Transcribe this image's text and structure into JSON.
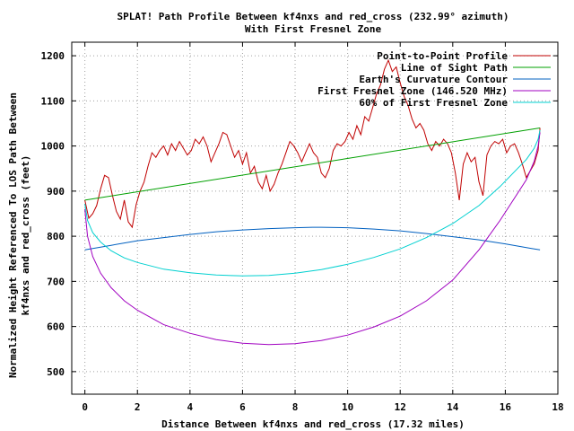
{
  "chart_data": {
    "type": "line",
    "title_lines": [
      "SPLAT! Path Profile Between kf4nxs and red_cross (232.99° azimuth)",
      "With First Fresnel Zone"
    ],
    "xlabel": "Distance Between kf4nxs and red_cross (17.32 miles)",
    "ylabel_lines": [
      "Normalized Height Referenced To LOS Path Between",
      "kf4nxs and red_cross (feet)"
    ],
    "xlim": [
      -0.5,
      18
    ],
    "ylim": [
      450,
      1230
    ],
    "x_ticks": [
      0,
      2,
      4,
      6,
      8,
      10,
      12,
      14,
      16,
      18
    ],
    "y_ticks": [
      500,
      600,
      700,
      800,
      900,
      1000,
      1100,
      1200
    ],
    "x_tick_labels": [
      "0",
      "2",
      "4",
      "6",
      "8",
      "10",
      "12",
      "14",
      "16",
      "18"
    ],
    "y_tick_labels": [
      "500",
      "600",
      "700",
      "800",
      "900",
      "1000",
      "1100",
      "1200"
    ],
    "grid": true,
    "legend_position": "top-right",
    "series": [
      {
        "name": "Point-to-Point Profile",
        "color": "#c00000",
        "x": [
          0,
          0.15,
          0.3,
          0.45,
          0.6,
          0.75,
          0.9,
          1.05,
          1.2,
          1.35,
          1.5,
          1.65,
          1.8,
          1.95,
          2.1,
          2.25,
          2.4,
          2.55,
          2.7,
          2.85,
          3.0,
          3.15,
          3.3,
          3.45,
          3.6,
          3.75,
          3.9,
          4.05,
          4.2,
          4.35,
          4.5,
          4.65,
          4.8,
          4.95,
          5.1,
          5.25,
          5.4,
          5.55,
          5.7,
          5.85,
          6.0,
          6.15,
          6.3,
          6.45,
          6.6,
          6.75,
          6.9,
          7.05,
          7.2,
          7.35,
          7.5,
          7.65,
          7.8,
          7.95,
          8.1,
          8.25,
          8.4,
          8.55,
          8.7,
          8.85,
          9.0,
          9.15,
          9.3,
          9.45,
          9.6,
          9.75,
          9.9,
          10.05,
          10.2,
          10.35,
          10.5,
          10.65,
          10.8,
          10.95,
          11.1,
          11.25,
          11.4,
          11.55,
          11.7,
          11.85,
          12.0,
          12.15,
          12.3,
          12.45,
          12.6,
          12.75,
          12.9,
          13.05,
          13.2,
          13.35,
          13.5,
          13.65,
          13.8,
          13.95,
          14.1,
          14.25,
          14.4,
          14.55,
          14.7,
          14.85,
          15.0,
          15.15,
          15.3,
          15.45,
          15.6,
          15.75,
          15.9,
          16.05,
          16.2,
          16.35,
          16.5,
          16.65,
          16.8,
          16.95,
          17.1,
          17.25,
          17.32
        ],
        "y": [
          880,
          840,
          850,
          868,
          905,
          935,
          930,
          890,
          855,
          838,
          880,
          832,
          820,
          870,
          900,
          920,
          955,
          985,
          975,
          990,
          1000,
          980,
          1005,
          990,
          1010,
          995,
          980,
          990,
          1015,
          1005,
          1020,
          1000,
          965,
          985,
          1005,
          1030,
          1025,
          1000,
          975,
          990,
          960,
          985,
          940,
          955,
          920,
          905,
          935,
          900,
          915,
          940,
          960,
          985,
          1010,
          1000,
          985,
          965,
          985,
          1005,
          985,
          975,
          940,
          930,
          950,
          990,
          1005,
          1000,
          1010,
          1030,
          1015,
          1045,
          1025,
          1065,
          1055,
          1085,
          1115,
          1135,
          1170,
          1190,
          1165,
          1175,
          1140,
          1110,
          1090,
          1060,
          1040,
          1050,
          1035,
          1005,
          990,
          1010,
          1000,
          1015,
          1005,
          985,
          940,
          880,
          960,
          985,
          965,
          975,
          920,
          890,
          980,
          1000,
          1010,
          1005,
          1015,
          985,
          1000,
          1005,
          985,
          960,
          930,
          945,
          960,
          990,
          1040
        ]
      },
      {
        "name": "Line of Sight Path",
        "color": "#00a000",
        "x": [
          0,
          17.32
        ],
        "y": [
          880,
          1040
        ]
      },
      {
        "name": "Earth's Curvature Contour",
        "color": "#0060c0",
        "x": [
          0,
          1,
          2,
          3,
          4,
          5,
          6,
          7,
          8,
          8.66,
          9,
          10,
          11,
          12,
          13,
          14,
          15,
          16,
          17,
          17.32
        ],
        "y": [
          770,
          780,
          790,
          797,
          804,
          810,
          814,
          817,
          819,
          820,
          820,
          819,
          816,
          812,
          806,
          799,
          792,
          783,
          773,
          770
        ]
      },
      {
        "name": "First Fresnel Zone (146.520 MHz)",
        "color": "#a000c0",
        "x": [
          0,
          0.1,
          0.3,
          0.6,
          1,
          1.5,
          2,
          3,
          4,
          5,
          6,
          7,
          8,
          9,
          10,
          11,
          12,
          13,
          14,
          15,
          15.8,
          16.3,
          16.8,
          17.1,
          17.25,
          17.32
        ],
        "y": [
          860,
          800,
          755,
          718,
          686,
          657,
          636,
          604,
          585,
          571,
          563,
          560,
          562,
          569,
          581,
          599,
          623,
          657,
          703,
          770,
          835,
          880,
          925,
          966,
          1000,
          1030
        ]
      },
      {
        "name": "60% of First Fresnel Zone",
        "color": "#00d0d0",
        "x": [
          0,
          0.1,
          0.3,
          0.6,
          1,
          1.5,
          2,
          3,
          4,
          5,
          6,
          7,
          8,
          9,
          10,
          11,
          12,
          13,
          14,
          15,
          15.8,
          16.3,
          16.8,
          17.1,
          17.25,
          17.32
        ],
        "y": [
          872,
          835,
          808,
          787,
          768,
          752,
          742,
          727,
          719,
          714,
          712,
          713,
          718,
          726,
          738,
          753,
          772,
          797,
          828,
          868,
          910,
          940,
          970,
          995,
          1015,
          1035
        ]
      }
    ]
  }
}
